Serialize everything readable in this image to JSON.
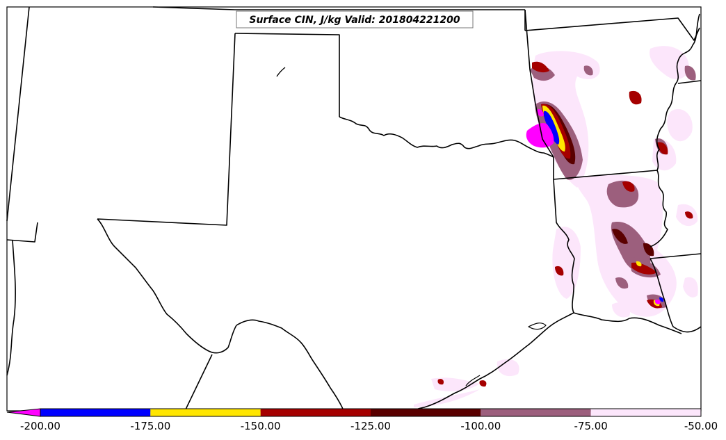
{
  "map": {
    "title": "Surface CIN, J/kg Valid: 201804221200",
    "colors": {
      "boundary": "#000000",
      "background": "#ffffff"
    }
  },
  "colorbar": {
    "extend": "min",
    "tick_labels": [
      "-200.00",
      "-175.00",
      "-150.00",
      "-125.00",
      "-100.00",
      "-75.00",
      "-50.00"
    ],
    "bins": [
      {
        "from": -200,
        "to": -175,
        "color": "#0000ff"
      },
      {
        "from": -175,
        "to": -150,
        "color": "#ffe600"
      },
      {
        "from": -150,
        "to": -125,
        "color": "#a50000"
      },
      {
        "from": -125,
        "to": -100,
        "color": "#5a0000"
      },
      {
        "from": -100,
        "to": -75,
        "color": "#9c5f7d"
      },
      {
        "from": -75,
        "to": -50,
        "color": "#fce6fb"
      }
    ],
    "below_min_color": "#ff00ff"
  }
}
